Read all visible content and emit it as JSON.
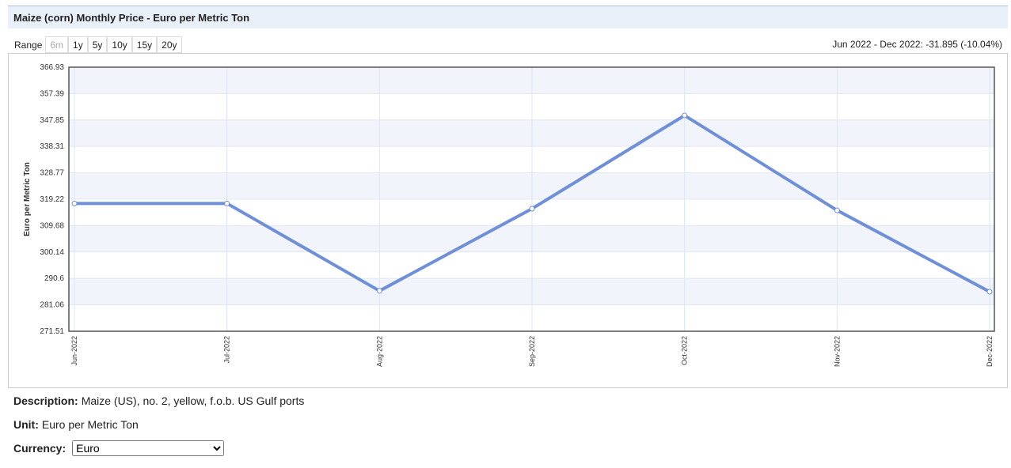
{
  "header": {
    "title": "Maize (corn) Monthly Price - Euro per Metric Ton"
  },
  "range": {
    "label": "Range",
    "buttons": [
      "6m",
      "1y",
      "5y",
      "10y",
      "15y",
      "20y"
    ]
  },
  "change": "Jun 2022 - Dec 2022: -31.895 (-10.04%)",
  "chart_data": {
    "type": "line",
    "y_label": "Euro per Metric Ton",
    "categories": [
      "Jun-2022",
      "Jul-2022",
      "Aug-2022",
      "Sep-2022",
      "Oct-2022",
      "Nov-2022",
      "Dec-2022"
    ],
    "values": [
      317.68,
      317.7,
      286.1,
      315.8,
      349.5,
      315.2,
      285.79
    ],
    "color": "#6f8fd8",
    "ylim": [
      271.51,
      366.93
    ],
    "yticks": [
      271.51,
      281.06,
      290.6,
      300.14,
      309.68,
      319.22,
      328.77,
      338.31,
      347.85,
      357.39,
      366.93
    ],
    "grid": true
  },
  "description": {
    "label": "Description:",
    "value": "Maize (US), no. 2, yellow, f.o.b. US Gulf ports"
  },
  "unit": {
    "label": "Unit:",
    "value": "Euro per Metric Ton"
  },
  "currency": {
    "label": "Currency:",
    "selected": "Euro"
  }
}
